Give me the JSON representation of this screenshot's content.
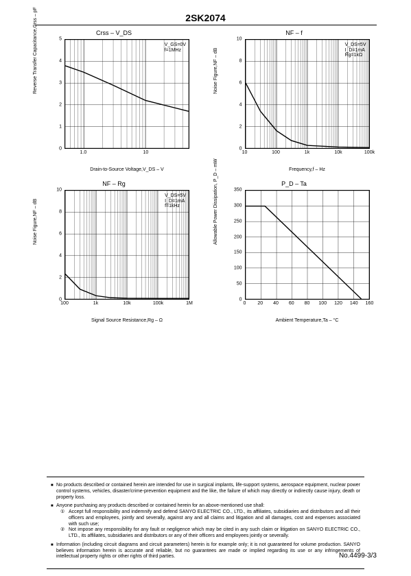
{
  "part_number": "2SK2074",
  "footer_text": "No.4499-3/3",
  "charts": [
    {
      "title": "Crss – V_DS",
      "ylabel": "Reverse Transfer Capacitance,Crss – pF",
      "xlabel": "Drain-to-Source Voltage,V_DS – V",
      "conditions": [
        "V_GS=0V",
        "f=1MHz"
      ],
      "yscale": "linear",
      "xscale": "log",
      "ylim": [
        0,
        5
      ],
      "xlim": [
        0.5,
        50
      ],
      "yticks": [
        0,
        1,
        2,
        3,
        4,
        5
      ],
      "xticks_log": [
        {
          "v": 1,
          "l": "1.0"
        },
        {
          "v": 10,
          "l": "10"
        }
      ],
      "xticks_minor": [
        0.5,
        0.7,
        2,
        3,
        5,
        7,
        20,
        30,
        50
      ],
      "data": [
        [
          0.5,
          3.8
        ],
        [
          1,
          3.5
        ],
        [
          3,
          2.9
        ],
        [
          10,
          2.2
        ],
        [
          50,
          1.7
        ]
      ],
      "line_color": "#000000",
      "bg_color": "#ffffff",
      "grid_color": "#000000"
    },
    {
      "title": "NF – f",
      "ylabel": "Noise Figure,NF – dB",
      "xlabel": "Frequency,f – Hz",
      "conditions": [
        "V_DS=5V",
        "I_D=1mA",
        "Rg=1kΩ"
      ],
      "yscale": "linear",
      "xscale": "log",
      "ylim": [
        0,
        10
      ],
      "xlim": [
        10,
        100000
      ],
      "yticks": [
        0,
        2,
        4,
        6,
        8,
        10
      ],
      "xticks_log": [
        {
          "v": 10,
          "l": "10"
        },
        {
          "v": 100,
          "l": "100"
        },
        {
          "v": 1000,
          "l": "1k"
        },
        {
          "v": 10000,
          "l": "10k"
        },
        {
          "v": 100000,
          "l": "100k"
        }
      ],
      "data": [
        [
          10,
          6
        ],
        [
          30,
          3.4
        ],
        [
          100,
          1.6
        ],
        [
          300,
          0.7
        ],
        [
          1000,
          0.25
        ],
        [
          10000,
          0.1
        ],
        [
          100000,
          0.05
        ]
      ],
      "line_color": "#000000",
      "bg_color": "#ffffff",
      "grid_color": "#000000"
    },
    {
      "title": "NF – Rg",
      "ylabel": "Noise Figure,NF – dB",
      "xlabel": "Signal Source Resistance,Rg – Ω",
      "conditions": [
        "V_DS=5V",
        "I_D=1mA",
        "f=1kHz"
      ],
      "yscale": "linear",
      "xscale": "log",
      "ylim": [
        0,
        10
      ],
      "xlim": [
        100,
        1000000
      ],
      "yticks": [
        0,
        2,
        4,
        6,
        8,
        10
      ],
      "xticks_log": [
        {
          "v": 100,
          "l": "100"
        },
        {
          "v": 1000,
          "l": "1k"
        },
        {
          "v": 10000,
          "l": "10k"
        },
        {
          "v": 100000,
          "l": "100k"
        },
        {
          "v": 1000000,
          "l": "1M"
        }
      ],
      "data": [
        [
          100,
          2.3
        ],
        [
          300,
          0.9
        ],
        [
          1000,
          0.3
        ],
        [
          3000,
          0.12
        ],
        [
          10000,
          0.07
        ],
        [
          100000,
          0.05
        ],
        [
          1000000,
          0.05
        ]
      ],
      "line_color": "#000000",
      "bg_color": "#ffffff",
      "grid_color": "#000000"
    },
    {
      "title": "P_D – Ta",
      "ylabel": "Allowable Power Dissipation, P_D – mW",
      "xlabel": "Ambient Temperature,Ta – °C",
      "conditions": [],
      "yscale": "linear",
      "xscale": "linear",
      "ylim": [
        0,
        350
      ],
      "xlim": [
        0,
        160
      ],
      "yticks": [
        0,
        50,
        100,
        150,
        200,
        250,
        300,
        350
      ],
      "xticks_lin": [
        0,
        20,
        40,
        60,
        80,
        100,
        120,
        140,
        160
      ],
      "data": [
        [
          0,
          300
        ],
        [
          25,
          300
        ],
        [
          150,
          0
        ]
      ],
      "line_color": "#000000",
      "bg_color": "#ffffff",
      "grid_color": "#000000"
    }
  ],
  "disclaimer": {
    "p1": "No products described or contained herein are intended for use in surgical implants, life-support systems, aerospace equipment, nuclear power control systems, vehicles, disaster/crime-prevention equipment and the like, the failure of which may directly or indirectly cause injury, death or property loss.",
    "p2_lead": "Anyone purchasing any products described or contained herein for an above-mentioned use shall:",
    "p2_1": "Accept full responsibility and indemnify and defend SANYO ELECTRIC CO., LTD., its affiliates, subsidiaries and distributors and all their officers and employees, jointly and severally, against any and all claims and litigation and all damages, cost and expenses associated with such use;",
    "p2_2": "Not impose any responsibility for any fault or negligence which may be cited in any such claim or litigation on SANYO ELECTRIC CO., LTD., its affiliates, subsidiaries and distributors or any of their officers and employees jointly or severally.",
    "p3": "Information (including circuit diagrams and circuit parameters) herein is for example only; it is not guaranteed for volume production. SANYO believes information herein is accurate and reliable, but no guarantees are made or implied regarding its use or any infringements of intellectual property rights or other rights of third parties."
  }
}
